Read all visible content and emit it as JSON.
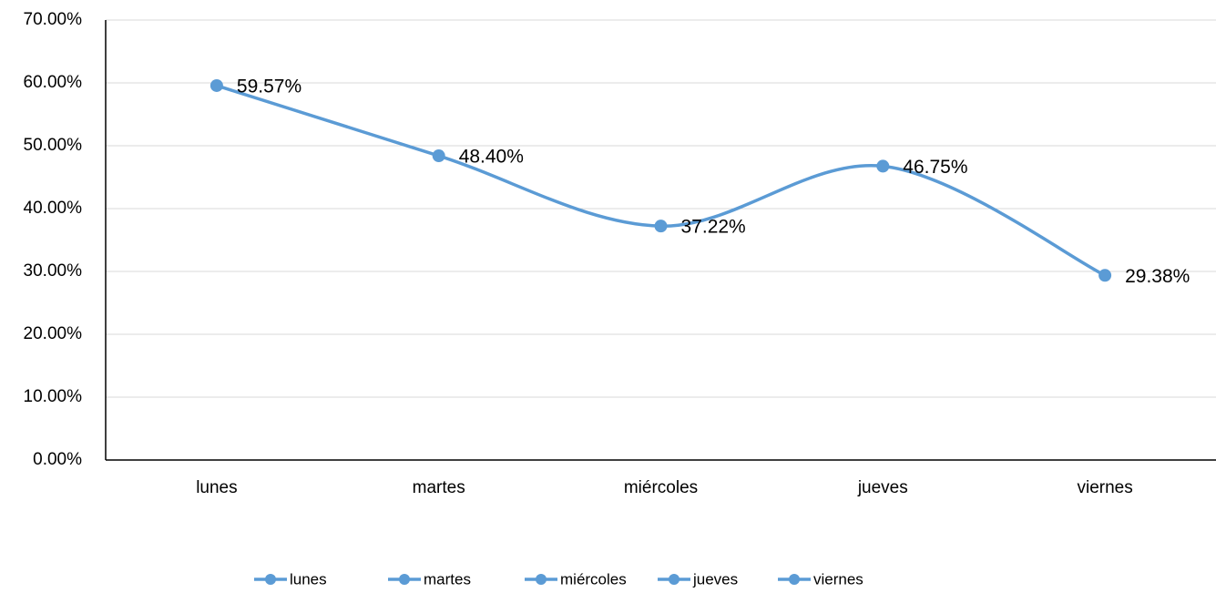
{
  "chart_data": {
    "type": "line",
    "categories": [
      "lunes",
      "martes",
      "miércoles",
      "jueves",
      "viernes"
    ],
    "values": [
      59.57,
      48.4,
      37.22,
      46.75,
      29.38
    ],
    "value_labels": [
      "59.57%",
      "48.40%",
      "37.22%",
      "46.75%",
      "29.38%"
    ],
    "color": "#5b9bd5",
    "smooth": true,
    "ylim": [
      0,
      70
    ],
    "yticks": [
      {
        "value": 0,
        "label": "0.00%"
      },
      {
        "value": 10,
        "label": "10.00%"
      },
      {
        "value": 20,
        "label": "20.00%"
      },
      {
        "value": 30,
        "label": "30.00%"
      },
      {
        "value": 40,
        "label": "40.00%"
      },
      {
        "value": 50,
        "label": "50.00%"
      },
      {
        "value": 60,
        "label": "60.00%"
      },
      {
        "value": 70,
        "label": "70.00%"
      }
    ],
    "grid": true,
    "legend": "bottom"
  }
}
